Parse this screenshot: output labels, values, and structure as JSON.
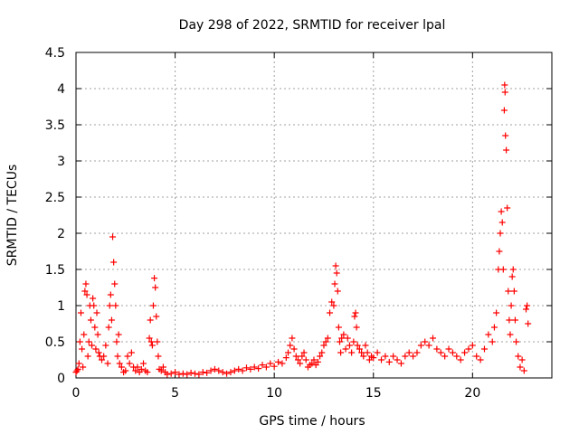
{
  "chart_data": {
    "type": "scatter",
    "title": "Day 298 of 2022, SRMTID for receiver lpal",
    "xlabel": "GPS time / hours",
    "ylabel": "SRMTID / TECUs",
    "xlim": [
      0,
      24
    ],
    "ylim": [
      0,
      4.5
    ],
    "x_ticks": [
      0,
      5,
      10,
      15,
      20
    ],
    "y_ticks": [
      0,
      0.5,
      1,
      1.5,
      2,
      2.5,
      3,
      3.5,
      4,
      4.5
    ],
    "x_tick_labels": [
      "0",
      "5",
      "10",
      "15",
      "20"
    ],
    "y_tick_labels": [
      "0",
      "0.5",
      "1",
      "1.5",
      "2",
      "2.5",
      "3",
      "3.5",
      "4",
      "4.5"
    ],
    "grid": true,
    "marker": "plus",
    "series": [
      {
        "name": "SRMTID",
        "color": "#ff0000",
        "points": [
          [
            0.0,
            0.08
          ],
          [
            0.05,
            0.1
          ],
          [
            0.1,
            0.12
          ],
          [
            0.15,
            0.2
          ],
          [
            0.2,
            0.5
          ],
          [
            0.25,
            0.9
          ],
          [
            0.3,
            0.4
          ],
          [
            0.35,
            0.15
          ],
          [
            0.4,
            0.6
          ],
          [
            0.45,
            1.2
          ],
          [
            0.5,
            1.3
          ],
          [
            0.55,
            1.15
          ],
          [
            0.6,
            0.3
          ],
          [
            0.65,
            0.5
          ],
          [
            0.7,
            1.0
          ],
          [
            0.75,
            0.8
          ],
          [
            0.8,
            0.45
          ],
          [
            0.85,
            1.1
          ],
          [
            0.9,
            1.0
          ],
          [
            0.95,
            0.7
          ],
          [
            1.0,
            0.4
          ],
          [
            1.05,
            0.9
          ],
          [
            1.1,
            0.6
          ],
          [
            1.15,
            0.35
          ],
          [
            1.2,
            0.3
          ],
          [
            1.3,
            0.25
          ],
          [
            1.4,
            0.3
          ],
          [
            1.5,
            0.45
          ],
          [
            1.6,
            0.2
          ],
          [
            1.65,
            0.7
          ],
          [
            1.7,
            1.0
          ],
          [
            1.75,
            1.15
          ],
          [
            1.8,
            0.8
          ],
          [
            1.85,
            1.95
          ],
          [
            1.9,
            1.6
          ],
          [
            1.95,
            1.3
          ],
          [
            2.0,
            1.0
          ],
          [
            2.05,
            0.5
          ],
          [
            2.1,
            0.3
          ],
          [
            2.15,
            0.6
          ],
          [
            2.2,
            0.2
          ],
          [
            2.3,
            0.15
          ],
          [
            2.4,
            0.08
          ],
          [
            2.5,
            0.1
          ],
          [
            2.6,
            0.3
          ],
          [
            2.7,
            0.2
          ],
          [
            2.8,
            0.35
          ],
          [
            2.9,
            0.15
          ],
          [
            3.0,
            0.1
          ],
          [
            3.1,
            0.15
          ],
          [
            3.2,
            0.08
          ],
          [
            3.3,
            0.12
          ],
          [
            3.4,
            0.2
          ],
          [
            3.5,
            0.1
          ],
          [
            3.6,
            0.08
          ],
          [
            3.7,
            0.55
          ],
          [
            3.75,
            0.8
          ],
          [
            3.8,
            0.5
          ],
          [
            3.85,
            0.45
          ],
          [
            3.9,
            1.0
          ],
          [
            3.95,
            1.38
          ],
          [
            4.0,
            1.25
          ],
          [
            4.05,
            0.85
          ],
          [
            4.1,
            0.5
          ],
          [
            4.15,
            0.3
          ],
          [
            4.2,
            0.12
          ],
          [
            4.3,
            0.1
          ],
          [
            4.4,
            0.15
          ],
          [
            4.5,
            0.08
          ],
          [
            4.6,
            0.05
          ],
          [
            4.8,
            0.06
          ],
          [
            5.0,
            0.08
          ],
          [
            5.2,
            0.05
          ],
          [
            5.4,
            0.06
          ],
          [
            5.6,
            0.05
          ],
          [
            5.8,
            0.07
          ],
          [
            6.0,
            0.06
          ],
          [
            6.2,
            0.05
          ],
          [
            6.4,
            0.08
          ],
          [
            6.6,
            0.07
          ],
          [
            6.8,
            0.1
          ],
          [
            7.0,
            0.12
          ],
          [
            7.2,
            0.1
          ],
          [
            7.4,
            0.08
          ],
          [
            7.6,
            0.06
          ],
          [
            7.8,
            0.08
          ],
          [
            8.0,
            0.1
          ],
          [
            8.2,
            0.12
          ],
          [
            8.4,
            0.1
          ],
          [
            8.6,
            0.14
          ],
          [
            8.8,
            0.12
          ],
          [
            9.0,
            0.15
          ],
          [
            9.2,
            0.13
          ],
          [
            9.4,
            0.18
          ],
          [
            9.6,
            0.15
          ],
          [
            9.8,
            0.2
          ],
          [
            10.0,
            0.16
          ],
          [
            10.2,
            0.22
          ],
          [
            10.4,
            0.2
          ],
          [
            10.6,
            0.28
          ],
          [
            10.7,
            0.35
          ],
          [
            10.8,
            0.45
          ],
          [
            10.9,
            0.55
          ],
          [
            11.0,
            0.4
          ],
          [
            11.1,
            0.3
          ],
          [
            11.2,
            0.25
          ],
          [
            11.3,
            0.2
          ],
          [
            11.4,
            0.3
          ],
          [
            11.5,
            0.35
          ],
          [
            11.6,
            0.25
          ],
          [
            11.7,
            0.15
          ],
          [
            11.8,
            0.18
          ],
          [
            11.9,
            0.2
          ],
          [
            12.0,
            0.25
          ],
          [
            12.1,
            0.18
          ],
          [
            12.2,
            0.22
          ],
          [
            12.3,
            0.3
          ],
          [
            12.4,
            0.35
          ],
          [
            12.5,
            0.45
          ],
          [
            12.6,
            0.5
          ],
          [
            12.7,
            0.55
          ],
          [
            12.8,
            0.9
          ],
          [
            12.9,
            1.05
          ],
          [
            13.0,
            1.0
          ],
          [
            13.05,
            1.3
          ],
          [
            13.1,
            1.55
          ],
          [
            13.15,
            1.45
          ],
          [
            13.2,
            1.2
          ],
          [
            13.25,
            0.7
          ],
          [
            13.3,
            0.5
          ],
          [
            13.35,
            0.35
          ],
          [
            13.4,
            0.55
          ],
          [
            13.5,
            0.6
          ],
          [
            13.6,
            0.4
          ],
          [
            13.7,
            0.55
          ],
          [
            13.8,
            0.45
          ],
          [
            13.9,
            0.35
          ],
          [
            14.0,
            0.5
          ],
          [
            14.05,
            0.85
          ],
          [
            14.1,
            0.9
          ],
          [
            14.15,
            0.7
          ],
          [
            14.2,
            0.45
          ],
          [
            14.3,
            0.4
          ],
          [
            14.4,
            0.35
          ],
          [
            14.5,
            0.3
          ],
          [
            14.6,
            0.45
          ],
          [
            14.7,
            0.35
          ],
          [
            14.8,
            0.25
          ],
          [
            14.9,
            0.3
          ],
          [
            15.0,
            0.28
          ],
          [
            15.2,
            0.35
          ],
          [
            15.4,
            0.25
          ],
          [
            15.6,
            0.3
          ],
          [
            15.8,
            0.22
          ],
          [
            16.0,
            0.3
          ],
          [
            16.2,
            0.25
          ],
          [
            16.4,
            0.2
          ],
          [
            16.6,
            0.3
          ],
          [
            16.8,
            0.35
          ],
          [
            17.0,
            0.3
          ],
          [
            17.2,
            0.35
          ],
          [
            17.4,
            0.45
          ],
          [
            17.6,
            0.5
          ],
          [
            17.8,
            0.45
          ],
          [
            18.0,
            0.55
          ],
          [
            18.2,
            0.4
          ],
          [
            18.4,
            0.35
          ],
          [
            18.6,
            0.3
          ],
          [
            18.8,
            0.4
          ],
          [
            19.0,
            0.35
          ],
          [
            19.2,
            0.3
          ],
          [
            19.4,
            0.25
          ],
          [
            19.6,
            0.35
          ],
          [
            19.8,
            0.4
          ],
          [
            20.0,
            0.45
          ],
          [
            20.2,
            0.3
          ],
          [
            20.4,
            0.25
          ],
          [
            20.6,
            0.4
          ],
          [
            20.8,
            0.6
          ],
          [
            21.0,
            0.5
          ],
          [
            21.1,
            0.7
          ],
          [
            21.2,
            0.9
          ],
          [
            21.3,
            1.5
          ],
          [
            21.35,
            1.75
          ],
          [
            21.4,
            2.0
          ],
          [
            21.45,
            2.3
          ],
          [
            21.5,
            2.15
          ],
          [
            21.55,
            1.5
          ],
          [
            21.6,
            3.7
          ],
          [
            21.62,
            4.05
          ],
          [
            21.64,
            3.95
          ],
          [
            21.66,
            3.35
          ],
          [
            21.7,
            3.15
          ],
          [
            21.75,
            2.35
          ],
          [
            21.8,
            1.2
          ],
          [
            21.85,
            0.8
          ],
          [
            21.9,
            0.6
          ],
          [
            21.95,
            1.0
          ],
          [
            22.0,
            1.4
          ],
          [
            22.05,
            1.5
          ],
          [
            22.1,
            1.2
          ],
          [
            22.15,
            0.8
          ],
          [
            22.2,
            0.5
          ],
          [
            22.3,
            0.3
          ],
          [
            22.4,
            0.15
          ],
          [
            22.5,
            0.25
          ],
          [
            22.6,
            0.1
          ],
          [
            22.7,
            0.95
          ],
          [
            22.75,
            1.0
          ],
          [
            22.8,
            0.75
          ]
        ]
      }
    ]
  }
}
